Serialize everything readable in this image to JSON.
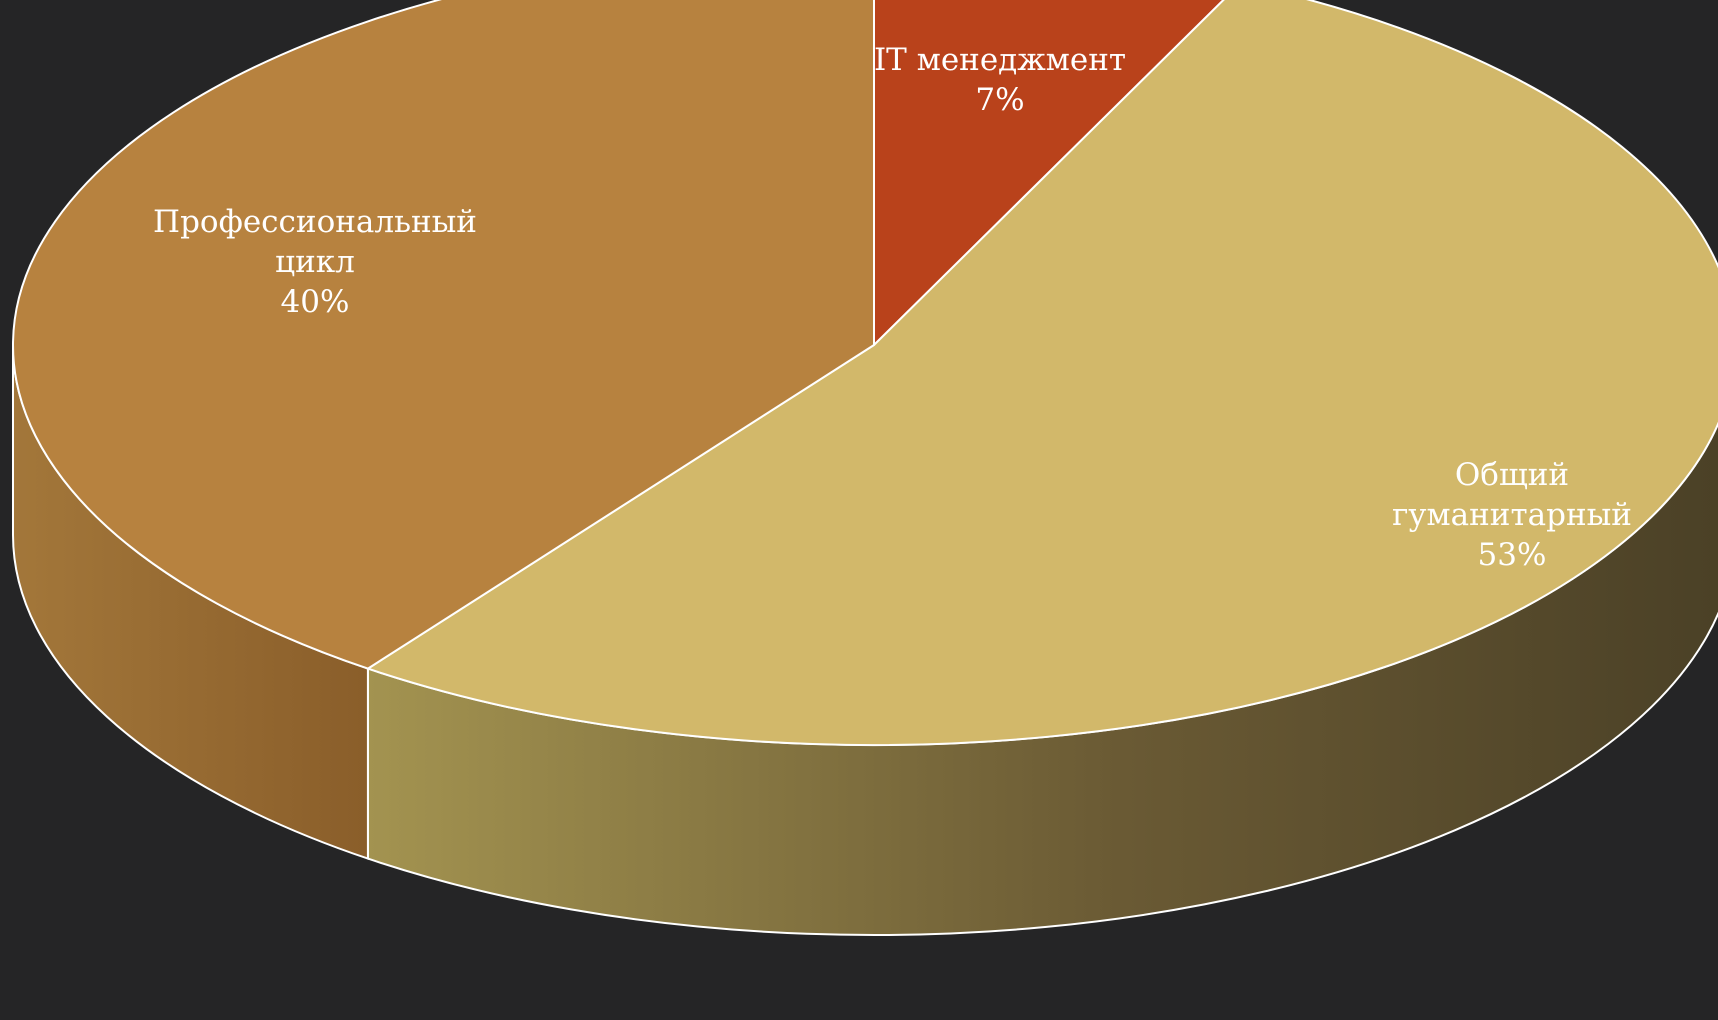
{
  "background_color": "#252526",
  "chart_data": {
    "type": "pie",
    "style": "3d",
    "start_angle_deg": 90,
    "direction": "clockwise",
    "slices": [
      {
        "category": "IT менеджмент",
        "value": 7,
        "value_label": "7%",
        "label_lines": [
          "IT менеджмент",
          "7%"
        ],
        "color": "#B9421B",
        "side_color": "#7E2E14"
      },
      {
        "category": "Общий гуманитарный",
        "value": 53,
        "value_label": "53%",
        "label_lines": [
          "Общий",
          "гуманитарный",
          "53%"
        ],
        "color": "#D2B86A",
        "side_color": "#A89350"
      },
      {
        "category": "Профессиональный цикл",
        "value": 40,
        "value_label": "40%",
        "label_lines": [
          "Профессиональный",
          "цикл",
          "40%"
        ],
        "color": "#B7823F",
        "side_color": "#99692F"
      }
    ],
    "legend": "none",
    "data_labels": "category and percentage, inside slices"
  }
}
